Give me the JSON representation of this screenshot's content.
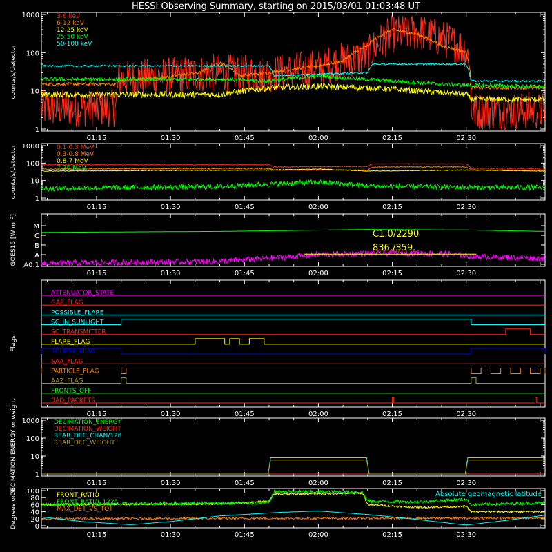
{
  "title": "HESSI Observing Summary, starting on 2015/03/01 01:03:48 UT",
  "colors": {
    "bg": "#000000",
    "axis": "#ffffff",
    "red": "#ff2a1a",
    "orange": "#ff7a00",
    "yellow": "#ffff00",
    "green": "#00ff00",
    "cyan": "#00ffff",
    "magenta": "#ff00ff",
    "blue": "#0000ff",
    "olive": "#b0a030",
    "gray": "#d0d0d0"
  },
  "time_axis": {
    "start": "01:03:48",
    "ticks": [
      "01:15",
      "01:30",
      "01:45",
      "02:00",
      "02:15",
      "02:30"
    ],
    "range_minutes": [
      63.8,
      166
    ]
  },
  "chart_data": [
    {
      "type": "line",
      "ylabel": "counts/s/detector",
      "yscale": "log",
      "ylim": [
        1,
        1000
      ],
      "yticks": [
        "1",
        "10",
        "100",
        "1000"
      ],
      "legend_placement": "top-left",
      "series": [
        {
          "name": "3-6 keV",
          "color": "red",
          "noise": 0.5,
          "points": [
            [
              63.8,
              3.5
            ],
            [
              79,
              3.5
            ],
            [
              79.5,
              20
            ],
            [
              90,
              25
            ],
            [
              100,
              30
            ],
            [
              110,
              28
            ],
            [
              120,
              40
            ],
            [
              130,
              80
            ],
            [
              135,
              300
            ],
            [
              140,
              350
            ],
            [
              150,
              120
            ],
            [
              151,
              3
            ],
            [
              166,
              3
            ]
          ]
        },
        {
          "name": "6-12 keV",
          "color": "orange",
          "noise": 0.04,
          "points": [
            [
              63.8,
              15
            ],
            [
              79,
              15
            ],
            [
              79.5,
              18
            ],
            [
              88,
              22
            ],
            [
              96,
              30
            ],
            [
              100,
              55
            ],
            [
              104,
              25
            ],
            [
              110,
              30
            ],
            [
              120,
              45
            ],
            [
              125,
              60
            ],
            [
              130,
              150
            ],
            [
              135,
              400
            ],
            [
              140,
              300
            ],
            [
              145,
              150
            ],
            [
              150,
              100
            ],
            [
              151,
              12
            ],
            [
              166,
              12
            ]
          ]
        },
        {
          "name": "12-25 keV",
          "color": "yellow",
          "noise": 0.08,
          "points": [
            [
              63.8,
              8
            ],
            [
              100,
              8
            ],
            [
              110,
              12
            ],
            [
              120,
              13
            ],
            [
              130,
              12
            ],
            [
              140,
              10
            ],
            [
              150,
              8
            ],
            [
              151,
              6
            ],
            [
              166,
              6
            ]
          ]
        },
        {
          "name": "25-50 keV",
          "color": "green",
          "noise": 0.05,
          "points": [
            [
              63.8,
              20
            ],
            [
              100,
              20
            ],
            [
              110,
              18
            ],
            [
              120,
              25
            ],
            [
              125,
              22
            ],
            [
              135,
              18
            ],
            [
              145,
              15
            ],
            [
              150,
              14
            ],
            [
              166,
              13
            ]
          ]
        },
        {
          "name": "50-100 keV",
          "color": "cyan",
          "noise": 0.02,
          "points": [
            [
              63.8,
              45
            ],
            [
              110,
              45
            ],
            [
              111,
              25
            ],
            [
              130,
              30
            ],
            [
              131,
              50
            ],
            [
              150,
              50
            ],
            [
              151,
              18
            ],
            [
              166,
              18
            ]
          ]
        }
      ]
    },
    {
      "type": "line",
      "ylabel": "counts/s/detector",
      "yscale": "log",
      "ylim": [
        1,
        1000
      ],
      "yticks": [
        "1",
        "10",
        "100",
        "1000"
      ],
      "legend_placement": "top-left",
      "series": [
        {
          "name": "0.1-0.3 MeV",
          "color": "red",
          "noise": 0.02,
          "points": [
            [
              63.8,
              80
            ],
            [
              110,
              80
            ],
            [
              111,
              60
            ],
            [
              130,
              65
            ],
            [
              131,
              90
            ],
            [
              150,
              90
            ],
            [
              151,
              50
            ],
            [
              166,
              50
            ]
          ]
        },
        {
          "name": "0.3-0.8 MeV",
          "color": "orange",
          "noise": 0.02,
          "points": [
            [
              63.8,
              45
            ],
            [
              110,
              50
            ],
            [
              111,
              40
            ],
            [
              130,
              40
            ],
            [
              131,
              60
            ],
            [
              150,
              60
            ],
            [
              151,
              40
            ],
            [
              166,
              40
            ]
          ]
        },
        {
          "name": "0.8-7 MeV",
          "color": "yellow",
          "noise": 0.02,
          "points": [
            [
              63.8,
              35
            ],
            [
              110,
              40
            ],
            [
              120,
              45
            ],
            [
              130,
              35
            ],
            [
              150,
              40
            ],
            [
              166,
              35
            ]
          ]
        },
        {
          "name": "7-20 MeV",
          "color": "green",
          "noise": 0.15,
          "points": [
            [
              63.8,
              3.5
            ],
            [
              100,
              4.5
            ],
            [
              120,
              8
            ],
            [
              130,
              5
            ],
            [
              150,
              4
            ],
            [
              166,
              4
            ]
          ]
        }
      ]
    },
    {
      "type": "line",
      "ylabel": "GOES15 [W m⁻²]",
      "yscale": "level",
      "ylim": [
        0,
        5
      ],
      "yticks": [
        "A0.1",
        "A",
        "B",
        "C",
        "M"
      ],
      "annotations": [
        "C1.0/2290",
        "836./359."
      ],
      "series": [
        {
          "name": "",
          "color": "green",
          "noise": 0.0,
          "points": [
            [
              63.8,
              3.3
            ],
            [
              100,
              3.4
            ],
            [
              130,
              3.6
            ],
            [
              150,
              3.55
            ],
            [
              166,
              3.4
            ]
          ]
        },
        {
          "name": "",
          "color": "magenta",
          "noise": 0.3,
          "points": [
            [
              63.8,
              0.1
            ],
            [
              100,
              0.3
            ],
            [
              115,
              0.8
            ],
            [
              120,
              1.0
            ],
            [
              135,
              1.2
            ],
            [
              145,
              1.1
            ],
            [
              152,
              0.8
            ],
            [
              166,
              0.6
            ]
          ]
        },
        {
          "name": "",
          "color": "yellow",
          "noise": 0.0,
          "points": [
            [
              117,
              1.05
            ],
            [
              152,
              1.05
            ]
          ]
        }
      ]
    },
    {
      "type": "line",
      "ylabel": "Flags",
      "yscale": "rows",
      "flags": [
        {
          "name": "ATTENUATOR_STATE",
          "color": "magenta",
          "steps": []
        },
        {
          "name": "GAP_FLAG",
          "color": "red",
          "steps": []
        },
        {
          "name": "POSSIBLE_FLARE",
          "color": "cyan",
          "steps": []
        },
        {
          "name": "SC_IN_SUNLIGHT",
          "color": "cyan",
          "steps": [
            [
              80,
              151
            ]
          ]
        },
        {
          "name": "SC_TRANSMITTER",
          "color": "red",
          "steps": [
            [
              158,
              163
            ]
          ]
        },
        {
          "name": "FLARE_FLAG",
          "color": "yellow",
          "steps": [
            [
              95,
              101
            ],
            [
              102,
              104
            ],
            [
              106,
              109
            ]
          ]
        },
        {
          "name": "ECLIPSE_FLAG",
          "color": "blue",
          "steps": [
            [
              63.8,
              80
            ],
            [
              151,
              166
            ]
          ]
        },
        {
          "name": "SAA_FLAG",
          "color": "red",
          "steps": []
        },
        {
          "name": "PARTICLE_FLAG",
          "color": "orange",
          "steps": [
            [
              63.8,
              80
            ],
            [
              81,
              151
            ],
            [
              153,
              155
            ],
            [
              157,
              159
            ],
            [
              161,
              163
            ],
            [
              165,
              166
            ]
          ]
        },
        {
          "name": "AAZ_FLAG",
          "color": "olive",
          "steps": [
            [
              80,
              81
            ],
            [
              151,
              152
            ]
          ]
        },
        {
          "name": "FRONTS_OFF",
          "color": "green",
          "steps": []
        },
        {
          "name": "BAD_PACKETS",
          "color": "red",
          "steps": [
            [
              135,
              135.3
            ],
            [
              164,
              164.3
            ]
          ]
        }
      ]
    },
    {
      "type": "line",
      "ylabel": "DECIMATION ENERGY or weight",
      "yscale": "log",
      "ylim": [
        1,
        1000
      ],
      "yticks": [
        "1",
        "10",
        "100",
        "1000"
      ],
      "legend_placement": "top-left",
      "series": [
        {
          "name": "DECIMATION_ENERGY",
          "color": "green",
          "noise": 0.0,
          "points": [
            [
              63.8,
              1
            ],
            [
              166,
              1
            ]
          ]
        },
        {
          "name": "DECIMATION_WEIGHT",
          "color": "red",
          "noise": 0.0,
          "points": [
            [
              63.8,
              1
            ],
            [
              166,
              1
            ]
          ]
        },
        {
          "name": "REAR_DEC_CHAN/128",
          "color": "cyan",
          "noise": 0.0,
          "points": [
            [
              63.8,
              1
            ],
            [
              110,
              1
            ],
            [
              110,
              8
            ],
            [
              130,
              8
            ],
            [
              130,
              1
            ],
            [
              150,
              1
            ],
            [
              150,
              8
            ],
            [
              166,
              8
            ]
          ]
        },
        {
          "name": "REAR_DEC_WEIGHT",
          "color": "olive",
          "noise": 0.0,
          "points": [
            [
              63.8,
              1
            ],
            [
              110,
              1
            ],
            [
              110,
              6
            ],
            [
              130,
              6
            ],
            [
              130,
              1
            ],
            [
              150,
              1
            ],
            [
              150,
              6
            ],
            [
              166,
              6
            ]
          ]
        }
      ]
    },
    {
      "type": "line",
      "ylabel": "Degrees or %",
      "yscale": "linear",
      "ylim": [
        0,
        100
      ],
      "yticks": [
        "0",
        "20",
        "40",
        "60",
        "80",
        "100"
      ],
      "legend_placement": "top-left",
      "annotations": [
        "Absolute geomagnetic latitude"
      ],
      "series": [
        {
          "name": "FRONT_RATIO",
          "color": "yellow",
          "noise": 2.5,
          "points": [
            [
              63.8,
              60
            ],
            [
              100,
              62
            ],
            [
              110,
              70
            ],
            [
              111,
              90
            ],
            [
              129,
              92
            ],
            [
              130,
              60
            ],
            [
              140,
              52
            ],
            [
              150,
              55
            ],
            [
              151,
              40
            ],
            [
              166,
              40
            ]
          ]
        },
        {
          "name": "FRONT_RATIO_1225",
          "color": "green",
          "noise": 4.5,
          "points": [
            [
              63.8,
              60
            ],
            [
              110,
              65
            ],
            [
              111,
              97
            ],
            [
              129,
              96
            ],
            [
              130,
              70
            ],
            [
              140,
              68
            ],
            [
              150,
              75
            ],
            [
              151,
              60
            ],
            [
              166,
              65
            ]
          ]
        },
        {
          "name": "MAX_DET_VS_TOT",
          "color": "orange",
          "noise": 3.0,
          "points": [
            [
              63.8,
              20
            ],
            [
              166,
              22
            ]
          ]
        },
        {
          "name": "",
          "color": "cyan",
          "noise": 0.0,
          "points": [
            [
              63.8,
              25
            ],
            [
              72,
              12
            ],
            [
              82,
              3
            ],
            [
              90,
              12
            ],
            [
              100,
              28
            ],
            [
              112,
              38
            ],
            [
              120,
              42
            ],
            [
              130,
              32
            ],
            [
              140,
              18
            ],
            [
              148,
              5
            ],
            [
              150,
              2
            ],
            [
              158,
              15
            ],
            [
              166,
              30
            ]
          ]
        }
      ]
    }
  ]
}
